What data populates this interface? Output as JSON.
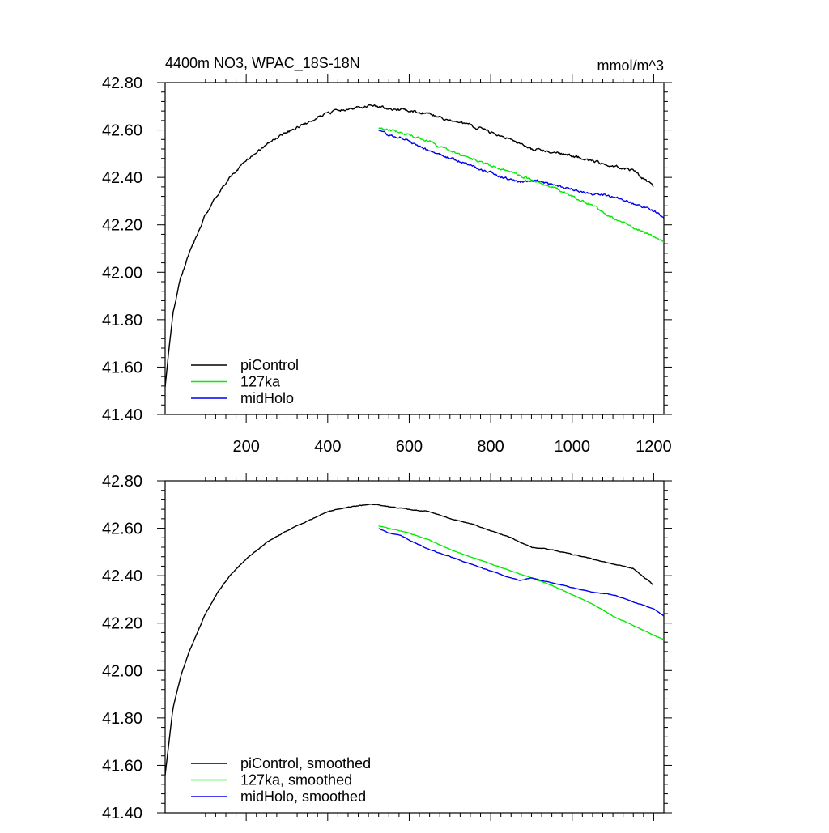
{
  "chart_data": [
    {
      "type": "line",
      "title": "4400m NO3, WPAC_18S-18N",
      "units": "mmol/m^3",
      "xlim": [
        1,
        1225
      ],
      "ylim": [
        41.4,
        42.8
      ],
      "xticks": [
        200,
        400,
        600,
        800,
        1000,
        1200
      ],
      "show_x_tick_labels": true,
      "yticks": [
        41.4,
        41.6,
        41.8,
        42.0,
        42.2,
        42.4,
        42.6,
        42.8
      ],
      "ytick_labels": [
        "41.40",
        "41.60",
        "41.80",
        "42.00",
        "42.20",
        "42.40",
        "42.60",
        "42.80"
      ],
      "legend_position": "bottom-left",
      "series": [
        {
          "name": "piControl",
          "color": "#000000",
          "noise": 0.0045,
          "x": [
            1,
            20,
            40,
            60,
            80,
            100,
            130,
            160,
            200,
            250,
            300,
            350,
            400,
            450,
            500,
            520,
            550,
            600,
            650,
            700,
            750,
            800,
            850,
            900,
            950,
            1000,
            1050,
            1100,
            1150,
            1200
          ],
          "values": [
            41.52,
            41.83,
            41.98,
            42.08,
            42.16,
            42.24,
            42.33,
            42.4,
            42.47,
            42.54,
            42.59,
            42.63,
            42.67,
            42.69,
            42.7,
            42.7,
            42.69,
            42.68,
            42.67,
            42.64,
            42.62,
            42.59,
            42.56,
            42.52,
            42.51,
            42.49,
            42.47,
            42.45,
            42.43,
            42.36
          ]
        },
        {
          "name": "127ka",
          "color": "#00ee00",
          "noise": 0.004,
          "x": [
            525,
            550,
            600,
            650,
            700,
            750,
            800,
            850,
            900,
            950,
            1000,
            1050,
            1100,
            1150,
            1200,
            1225
          ],
          "values": [
            42.61,
            42.6,
            42.58,
            42.55,
            42.51,
            42.48,
            42.45,
            42.42,
            42.39,
            42.36,
            42.32,
            42.28,
            42.23,
            42.19,
            42.15,
            42.13
          ]
        },
        {
          "name": "midHolo",
          "color": "#0000ee",
          "noise": 0.004,
          "x": [
            525,
            550,
            580,
            600,
            650,
            700,
            750,
            800,
            850,
            870,
            900,
            950,
            1000,
            1050,
            1100,
            1150,
            1200,
            1225
          ],
          "values": [
            42.6,
            42.58,
            42.57,
            42.55,
            42.51,
            42.48,
            42.45,
            42.42,
            42.39,
            42.38,
            42.39,
            42.37,
            42.35,
            42.33,
            42.32,
            42.29,
            42.26,
            42.23
          ]
        }
      ]
    },
    {
      "type": "line",
      "title": "",
      "units": "",
      "xlim": [
        1,
        1225
      ],
      "ylim": [
        41.4,
        42.8
      ],
      "xticks": [
        200,
        400,
        600,
        800,
        1000,
        1200
      ],
      "show_x_tick_labels": false,
      "yticks": [
        41.4,
        41.6,
        41.8,
        42.0,
        42.2,
        42.4,
        42.6,
        42.8
      ],
      "ytick_labels": [
        "41.40",
        "41.60",
        "41.80",
        "42.00",
        "42.20",
        "42.40",
        "42.60",
        "42.80"
      ],
      "legend_position": "bottom-left",
      "series": [
        {
          "name": "piControl, smoothed",
          "color": "#000000",
          "noise": 0.0012,
          "x": [
            1,
            20,
            40,
            60,
            80,
            100,
            130,
            160,
            200,
            250,
            300,
            350,
            400,
            450,
            500,
            520,
            550,
            600,
            650,
            700,
            750,
            800,
            850,
            900,
            950,
            1000,
            1050,
            1100,
            1150,
            1200
          ],
          "values": [
            41.56,
            41.84,
            41.98,
            42.08,
            42.16,
            42.24,
            42.33,
            42.4,
            42.47,
            42.54,
            42.59,
            42.63,
            42.67,
            42.69,
            42.7,
            42.7,
            42.69,
            42.68,
            42.67,
            42.64,
            42.62,
            42.59,
            42.56,
            42.52,
            42.51,
            42.49,
            42.47,
            42.45,
            42.43,
            42.36
          ]
        },
        {
          "name": "127ka, smoothed",
          "color": "#00ee00",
          "noise": 0.001,
          "x": [
            525,
            550,
            600,
            650,
            700,
            750,
            800,
            850,
            900,
            950,
            1000,
            1050,
            1100,
            1150,
            1200,
            1225
          ],
          "values": [
            42.61,
            42.6,
            42.58,
            42.55,
            42.51,
            42.48,
            42.45,
            42.42,
            42.39,
            42.36,
            42.32,
            42.28,
            42.23,
            42.19,
            42.15,
            42.13
          ]
        },
        {
          "name": "midHolo, smoothed",
          "color": "#0000ee",
          "noise": 0.001,
          "x": [
            525,
            550,
            580,
            600,
            650,
            700,
            750,
            800,
            850,
            870,
            900,
            950,
            1000,
            1050,
            1100,
            1150,
            1200,
            1225
          ],
          "values": [
            42.6,
            42.58,
            42.57,
            42.55,
            42.51,
            42.48,
            42.45,
            42.42,
            42.39,
            42.38,
            42.39,
            42.37,
            42.35,
            42.33,
            42.32,
            42.29,
            42.26,
            42.23
          ]
        }
      ]
    }
  ]
}
